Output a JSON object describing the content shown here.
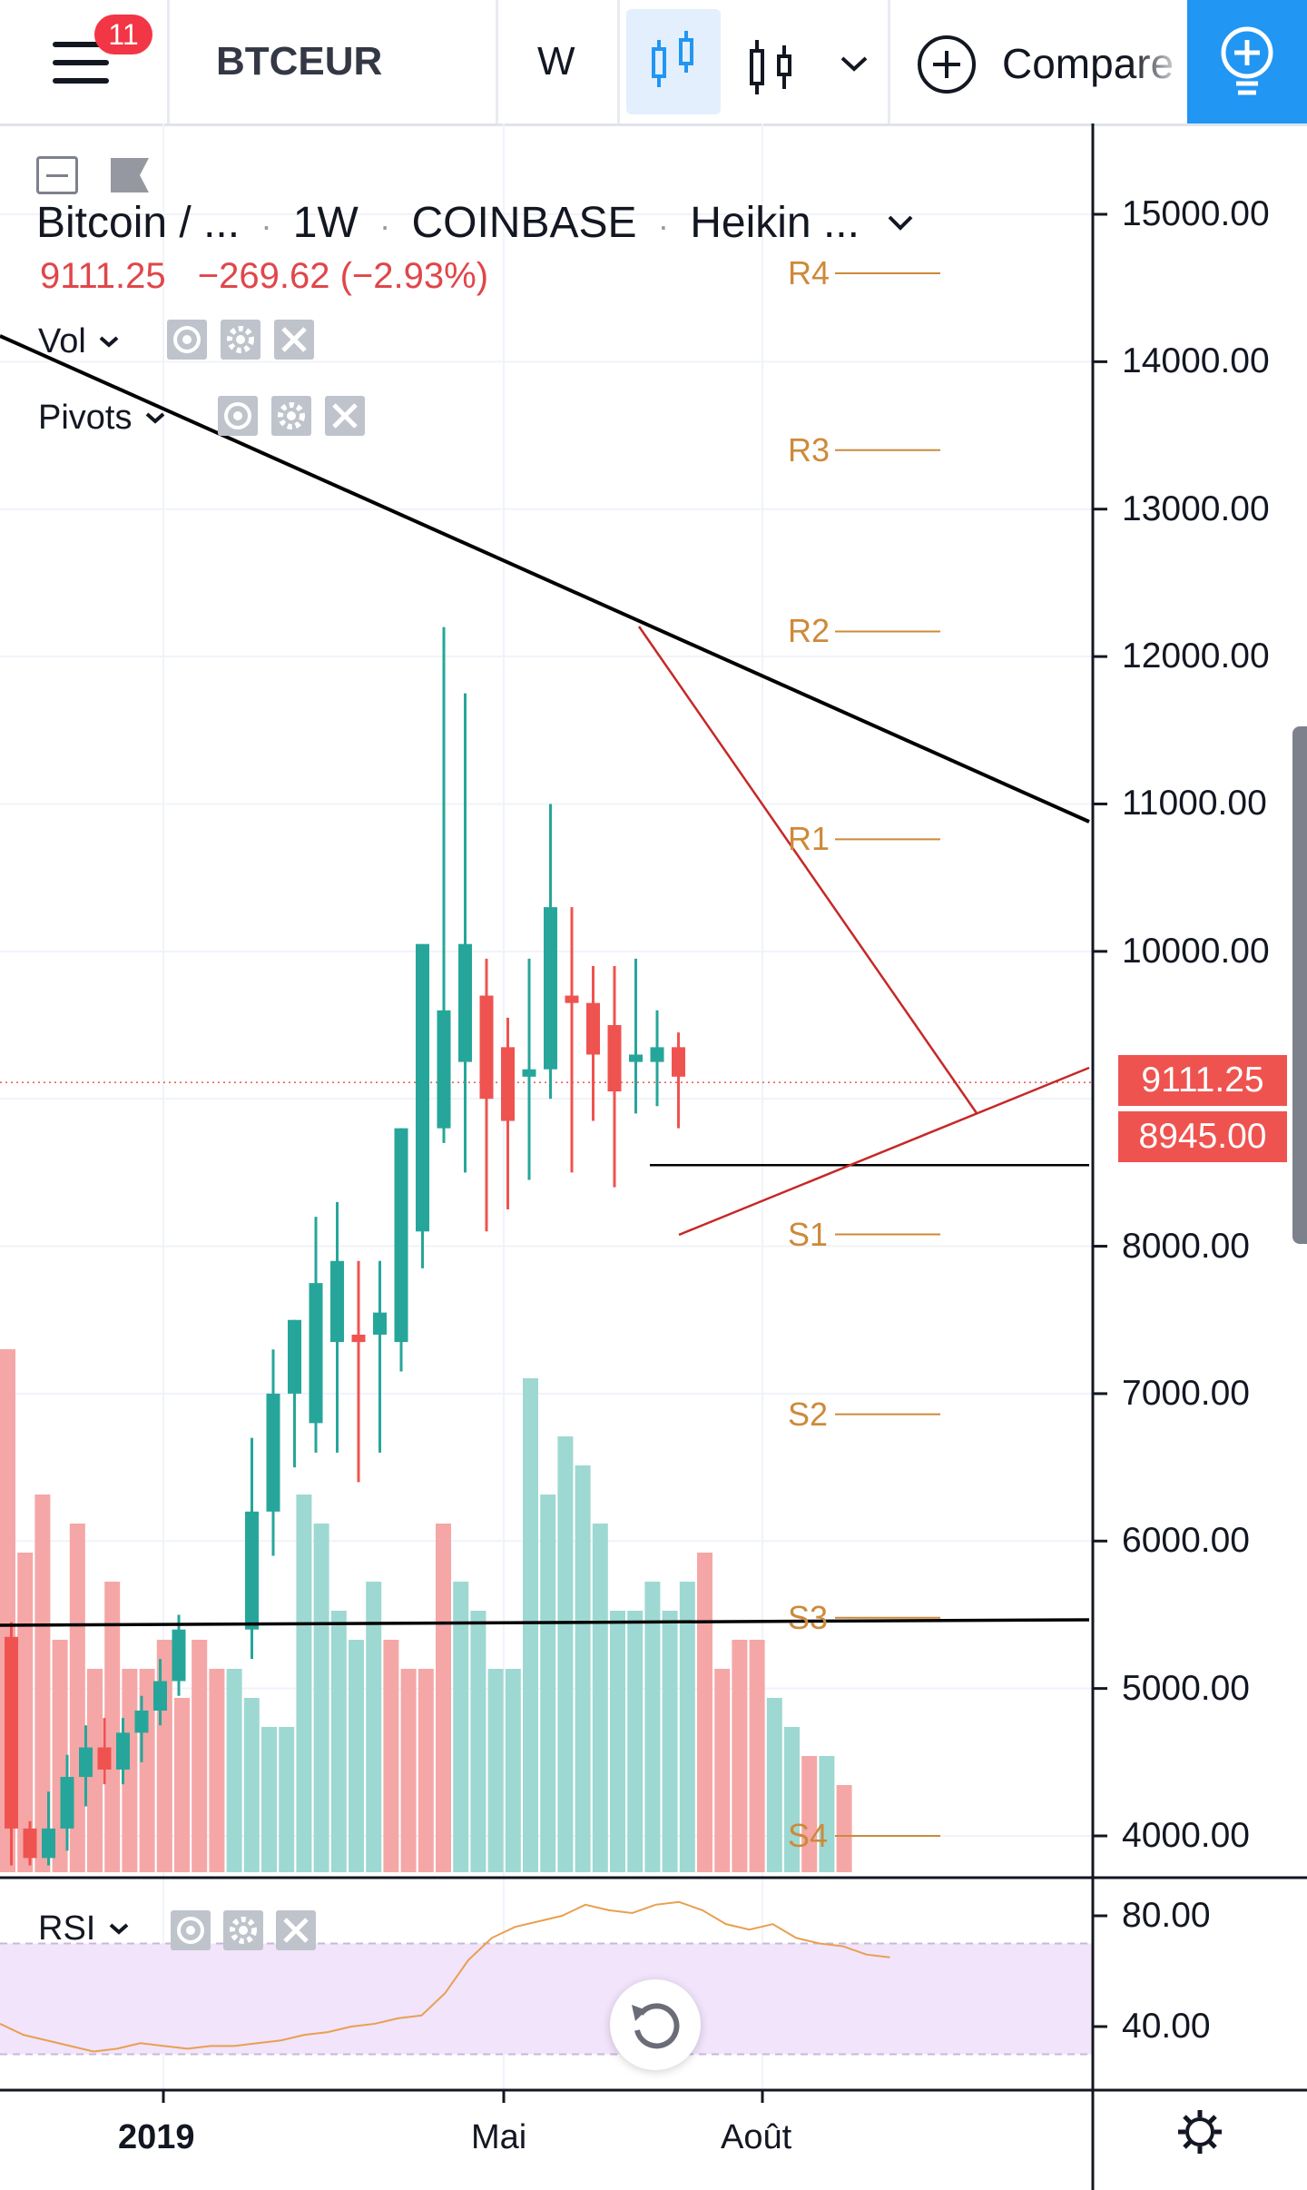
{
  "toolbar": {
    "notification_count": "11",
    "symbol": "BTCEUR",
    "interval": "W",
    "compare_label": "Compare"
  },
  "legend": {
    "symbol_name": "Bitcoin / ...",
    "interval": "1W",
    "exchange": "COINBASE",
    "chart_style": "Heikin ...",
    "separator": "·",
    "last_price": "9111.25",
    "change": "−269.62 (−2.93%)"
  },
  "indicators": {
    "volume": "Vol",
    "pivots": "Pivots",
    "rsi": "RSI"
  },
  "price_tags": {
    "last": "9111.25",
    "line": "8945.00"
  },
  "colors": {
    "up": "#26a69a",
    "down": "#ef5350",
    "pivot": "#cd8a3a",
    "trend_red": "#c62828",
    "accent": "#2196f3"
  },
  "chart_data": [
    {
      "type": "candlestick",
      "style": "Heikin Ashi",
      "interval": "1W",
      "y_axis": {
        "ticks": [
          "15000.00",
          "14000.00",
          "13000.00",
          "12000.00",
          "11000.00",
          "10000.00",
          "8000.00",
          "7000.00",
          "6000.00",
          "5000.00",
          "4000.00"
        ],
        "range": [
          3750,
          15650
        ]
      },
      "x_axis": {
        "ticks": [
          "2019",
          "Mai",
          "Août"
        ]
      },
      "candles": [
        {
          "o": 5750,
          "h": 5900,
          "l": 3800,
          "c": 5350
        },
        {
          "o": 5350,
          "h": 5450,
          "l": 3800,
          "c": 4050
        },
        {
          "o": 4050,
          "h": 4100,
          "l": 3800,
          "c": 3850
        },
        {
          "o": 3850,
          "h": 4300,
          "l": 3800,
          "c": 4050
        },
        {
          "o": 4050,
          "h": 4550,
          "l": 3900,
          "c": 4400
        },
        {
          "o": 4400,
          "h": 4750,
          "l": 4200,
          "c": 4600
        },
        {
          "o": 4600,
          "h": 4800,
          "l": 4350,
          "c": 4450
        },
        {
          "o": 4450,
          "h": 4800,
          "l": 4350,
          "c": 4700
        },
        {
          "o": 4700,
          "h": 4950,
          "l": 4500,
          "c": 4850
        },
        {
          "o": 4850,
          "h": 5200,
          "l": 4750,
          "c": 5050
        },
        {
          "o": 5050,
          "h": 5500,
          "l": 4950,
          "c": 5400
        },
        {
          "o": 5400,
          "h": 6700,
          "l": 5200,
          "c": 6200
        },
        {
          "o": 6200,
          "h": 7300,
          "l": 5900,
          "c": 7000
        },
        {
          "o": 7000,
          "h": 7500,
          "l": 6500,
          "c": 7500
        },
        {
          "o": 6800,
          "h": 8200,
          "l": 6600,
          "c": 7750
        },
        {
          "o": 7350,
          "h": 8300,
          "l": 6600,
          "c": 7900
        },
        {
          "o": 7400,
          "h": 7900,
          "l": 6400,
          "c": 7350
        },
        {
          "o": 7400,
          "h": 7900,
          "l": 6600,
          "c": 7550
        },
        {
          "o": 7350,
          "h": 8800,
          "l": 7150,
          "c": 8800
        },
        {
          "o": 8100,
          "h": 9950,
          "l": 7850,
          "c": 10050
        },
        {
          "o": 8800,
          "h": 12200,
          "l": 8700,
          "c": 9600
        },
        {
          "o": 9250,
          "h": 11750,
          "l": 8500,
          "c": 10050
        },
        {
          "o": 9700,
          "h": 9950,
          "l": 8100,
          "c": 9000
        },
        {
          "o": 9350,
          "h": 9550,
          "l": 8250,
          "c": 8850
        },
        {
          "o": 9150,
          "h": 9950,
          "l": 8450,
          "c": 9200
        },
        {
          "o": 9200,
          "h": 11000,
          "l": 9000,
          "c": 10300
        },
        {
          "o": 9700,
          "h": 10300,
          "l": 8500,
          "c": 9650
        },
        {
          "o": 9650,
          "h": 9900,
          "l": 8850,
          "c": 9300
        },
        {
          "o": 9500,
          "h": 9900,
          "l": 8400,
          "c": 9050
        },
        {
          "o": 9250,
          "h": 9950,
          "l": 8900,
          "c": 9300
        },
        {
          "o": 9250,
          "h": 9600,
          "l": 8950,
          "c": 9350
        },
        {
          "o": 9350,
          "h": 9450,
          "l": 8800,
          "c": 9150
        }
      ],
      "pivot_levels": [
        {
          "name": "R4",
          "value": 14600
        },
        {
          "name": "R3",
          "value": 13400
        },
        {
          "name": "R2",
          "value": 12170
        },
        {
          "name": "R1",
          "value": 10760
        },
        {
          "name": "S1",
          "value": 8080
        },
        {
          "name": "S2",
          "value": 6860
        },
        {
          "name": "S3",
          "value": 5480
        },
        {
          "name": "S4",
          "value": 4000
        }
      ],
      "horizontal_lines": [
        8550,
        5420
      ],
      "last_price_line": 9111.25
    },
    {
      "type": "bar",
      "name": "Vol",
      "colors_by_candle": true,
      "values": [
        18,
        11,
        13,
        8,
        12,
        7,
        10,
        7,
        7,
        8,
        6,
        8,
        7,
        7,
        6,
        5,
        5,
        13,
        12,
        9,
        8,
        10,
        8,
        7,
        7,
        12,
        10,
        9,
        7,
        7,
        17,
        13,
        15,
        14,
        12,
        9,
        9,
        10,
        9,
        10,
        11,
        7,
        8,
        8,
        6,
        5,
        4,
        4,
        3
      ]
    },
    {
      "type": "line",
      "name": "RSI",
      "y_axis": {
        "ticks": [
          "80.00",
          "40.00"
        ],
        "range": [
          20,
          90
        ]
      },
      "band": [
        30,
        70
      ],
      "values": [
        41,
        37,
        35,
        33,
        31,
        32,
        34,
        33,
        32,
        33,
        33,
        34,
        35,
        37,
        38,
        40,
        41,
        43,
        44,
        52,
        64,
        72,
        76,
        78,
        80,
        84,
        82,
        81,
        84,
        85,
        82,
        77,
        75,
        77,
        72,
        70,
        69,
        66,
        65
      ]
    }
  ]
}
